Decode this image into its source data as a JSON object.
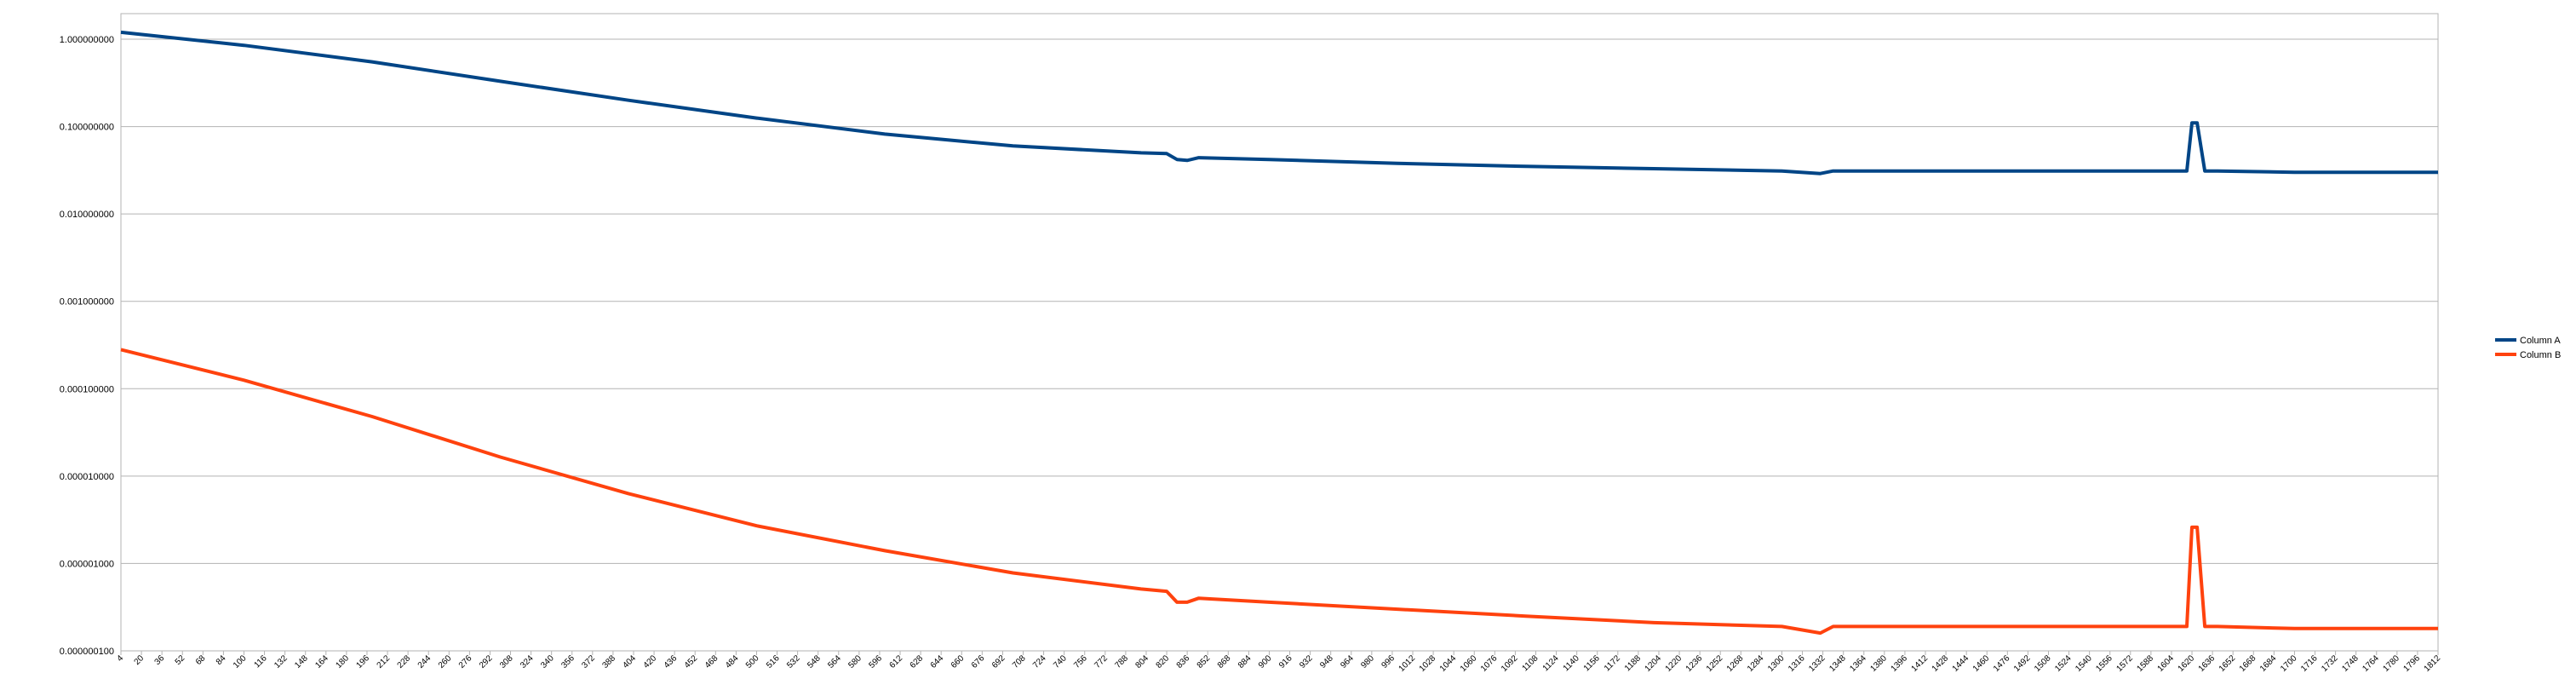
{
  "chart_data": {
    "type": "line",
    "title": "",
    "xlabel": "",
    "ylabel": "",
    "y_scale": "log",
    "ylim": [
      1e-07,
      1
    ],
    "xlim": [
      4,
      1812
    ],
    "grid": true,
    "legend_position": "right",
    "y_tick_labels": [
      "1.000000000",
      "0.100000000",
      "0.010000000",
      "0.001000000",
      "0.000100000",
      "0.000010000",
      "0.000001000",
      "0.000000100"
    ],
    "y_tick_values": [
      1,
      0.1,
      0.01,
      0.001,
      0.0001,
      1e-05,
      1e-06,
      1e-07
    ],
    "x_tick_labels": [
      "4",
      "20",
      "36",
      "52",
      "68",
      "84",
      "100",
      "116",
      "132",
      "148",
      "164",
      "180",
      "196",
      "212",
      "228",
      "244",
      "260",
      "276",
      "292",
      "308",
      "324",
      "340",
      "356",
      "372",
      "388",
      "404",
      "420",
      "436",
      "452",
      "468",
      "484",
      "500",
      "516",
      "532",
      "548",
      "564",
      "580",
      "596",
      "612",
      "628",
      "644",
      "660",
      "676",
      "692",
      "708",
      "724",
      "740",
      "756",
      "772",
      "788",
      "804",
      "820",
      "836",
      "852",
      "868",
      "884",
      "900",
      "916",
      "932",
      "948",
      "964",
      "980",
      "996",
      "1012",
      "1028",
      "1044",
      "1060",
      "1076",
      "1092",
      "1108",
      "1124",
      "1140",
      "1156",
      "1172",
      "1188",
      "1204",
      "1220",
      "1236",
      "1252",
      "1268",
      "1284",
      "1300",
      "1316",
      "1332",
      "1348",
      "1364",
      "1380",
      "1396",
      "1412",
      "1428",
      "1444",
      "1460",
      "1476",
      "1492",
      "1508",
      "1524",
      "1540",
      "1556",
      "1572",
      "1588",
      "1604",
      "1620",
      "1636",
      "1652",
      "1668",
      "1684",
      "1700",
      "1716",
      "1732",
      "1748",
      "1764",
      "1780",
      "1796",
      "1812"
    ],
    "series": [
      {
        "name": "Column A",
        "color": "#004586",
        "x": [
          4,
          100,
          200,
          300,
          400,
          500,
          600,
          700,
          800,
          820,
          828,
          836,
          845,
          900,
          1000,
          1100,
          1200,
          1300,
          1330,
          1340,
          1400,
          1500,
          1600,
          1616,
          1620,
          1624,
          1630,
          1640,
          1700,
          1812
        ],
        "y": [
          1.2,
          0.85,
          0.55,
          0.33,
          0.2,
          0.125,
          0.082,
          0.06,
          0.05,
          0.049,
          0.042,
          0.041,
          0.044,
          0.042,
          0.038,
          0.035,
          0.033,
          0.031,
          0.029,
          0.031,
          0.031,
          0.031,
          0.031,
          0.031,
          0.11,
          0.11,
          0.031,
          0.031,
          0.03,
          0.03
        ]
      },
      {
        "name": "Column B",
        "color": "#ff420e",
        "x": [
          4,
          100,
          200,
          300,
          400,
          500,
          600,
          700,
          800,
          820,
          828,
          836,
          845,
          900,
          1000,
          1100,
          1200,
          1300,
          1330,
          1340,
          1400,
          1500,
          1600,
          1616,
          1620,
          1624,
          1630,
          1640,
          1700,
          1812
        ],
        "y": [
          0.00028,
          0.000125,
          4.8e-05,
          1.65e-05,
          6.3e-06,
          2.7e-06,
          1.4e-06,
          7.8e-07,
          5.1e-07,
          4.8e-07,
          3.6e-07,
          3.6e-07,
          4e-07,
          3.6e-07,
          3e-07,
          2.5e-07,
          2.1e-07,
          1.9e-07,
          1.6e-07,
          1.9e-07,
          1.9e-07,
          1.9e-07,
          1.9e-07,
          1.9e-07,
          2.6e-06,
          2.6e-06,
          1.9e-07,
          1.9e-07,
          1.8e-07,
          1.8e-07
        ]
      }
    ]
  }
}
